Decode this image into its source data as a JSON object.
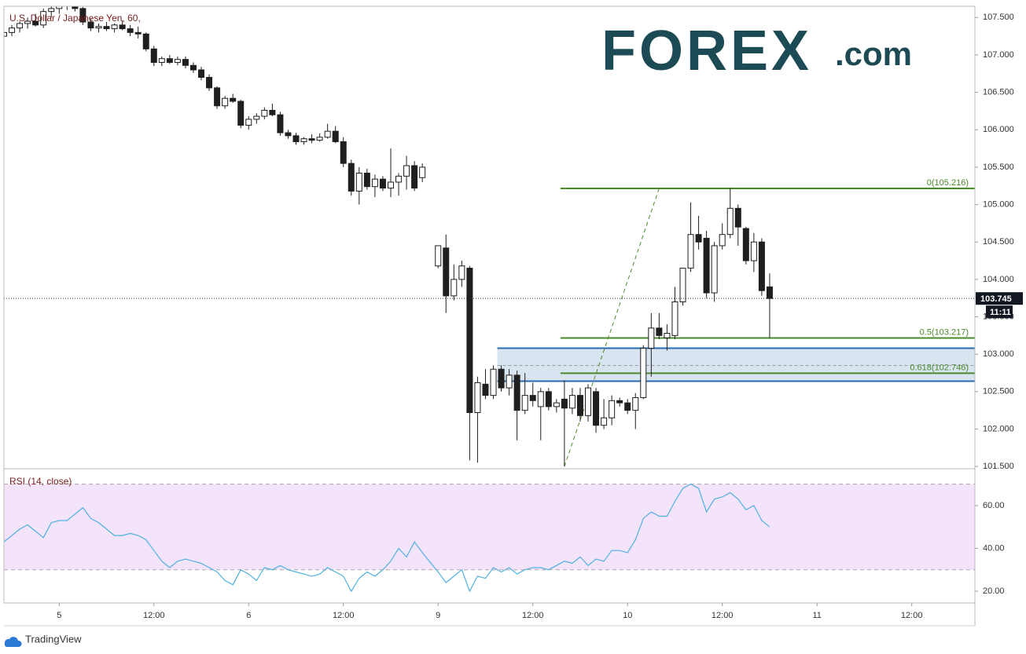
{
  "chart_data": [
    {
      "type": "candlestick",
      "title": "U.S. Dollar / Japanese Yen, 60,",
      "x": [
        -7,
        -6,
        -5,
        -4,
        -3,
        -2,
        -1,
        0,
        1,
        2,
        3,
        4,
        5,
        6,
        7,
        8,
        9,
        10,
        11,
        12,
        13,
        14,
        15,
        16,
        17,
        18,
        19,
        20,
        21,
        22,
        23,
        24,
        25,
        26,
        27,
        28,
        29,
        30,
        31,
        32,
        33,
        34,
        35,
        36,
        37,
        38,
        39,
        40,
        41,
        42,
        43,
        44,
        45,
        46,
        48,
        49,
        50,
        51,
        52,
        53,
        54,
        55,
        56,
        57,
        58,
        59,
        60,
        61,
        62,
        63,
        64,
        65,
        66,
        67,
        68,
        69,
        70,
        71,
        72,
        73,
        74,
        75,
        76,
        77,
        78,
        79,
        80,
        81,
        82,
        83,
        84,
        85,
        86,
        87,
        88,
        89,
        90
      ],
      "open": [
        107.25,
        107.3,
        107.36,
        107.42,
        107.45,
        107.4,
        107.58,
        107.62,
        107.66,
        107.72,
        107.62,
        107.44,
        107.36,
        107.38,
        107.35,
        107.4,
        107.35,
        107.3,
        107.28,
        107.08,
        106.9,
        106.95,
        106.9,
        106.94,
        106.86,
        106.8,
        106.7,
        106.56,
        106.32,
        106.42,
        106.38,
        106.06,
        106.14,
        106.18,
        106.26,
        106.2,
        105.96,
        105.92,
        105.84,
        105.88,
        105.86,
        105.9,
        105.98,
        105.84,
        105.55,
        105.18,
        105.42,
        105.24,
        105.34,
        105.22,
        105.3,
        105.38,
        105.52,
        105.36,
        104.18,
        104.42,
        103.78,
        104.0,
        104.15,
        102.22,
        102.6,
        102.45,
        102.8,
        102.55,
        102.72,
        102.25,
        102.45,
        102.3,
        102.5,
        102.3,
        102.4,
        102.28,
        102.45,
        102.18,
        102.5,
        102.05,
        102.15,
        102.38,
        102.35,
        102.25,
        102.42,
        103.08,
        103.35,
        103.22,
        103.25,
        103.7,
        104.15,
        104.6,
        104.55,
        103.82,
        104.45,
        104.6,
        104.95,
        104.68,
        104.25,
        104.5,
        103.9
      ],
      "high": [
        107.32,
        107.4,
        107.45,
        107.5,
        107.55,
        107.62,
        107.66,
        107.7,
        107.8,
        107.78,
        107.64,
        107.48,
        107.42,
        107.44,
        107.42,
        107.46,
        107.4,
        107.38,
        107.3,
        107.12,
        106.98,
        107.0,
        106.98,
        106.98,
        106.9,
        106.84,
        106.74,
        106.58,
        106.45,
        106.48,
        106.4,
        106.18,
        106.22,
        106.3,
        106.35,
        106.24,
        106.0,
        105.96,
        105.9,
        105.94,
        105.95,
        106.08,
        106.05,
        105.9,
        105.6,
        105.5,
        105.48,
        105.4,
        105.38,
        105.75,
        105.42,
        105.65,
        105.58,
        105.55,
        104.45,
        104.6,
        104.2,
        104.25,
        104.18,
        102.7,
        102.8,
        102.85,
        102.85,
        102.8,
        102.78,
        102.75,
        102.62,
        102.55,
        102.55,
        102.4,
        102.65,
        102.55,
        102.55,
        102.6,
        102.55,
        102.4,
        102.45,
        102.42,
        102.4,
        102.48,
        103.12,
        103.55,
        103.55,
        103.4,
        103.9,
        104.15,
        105.03,
        104.85,
        104.65,
        104.5,
        104.75,
        105.22,
        105.0,
        104.7,
        104.62,
        104.55,
        104.08
      ],
      "low": [
        107.18,
        107.25,
        107.3,
        107.35,
        107.38,
        107.36,
        107.5,
        107.55,
        107.6,
        107.58,
        107.4,
        107.32,
        107.3,
        107.32,
        107.3,
        107.33,
        107.25,
        107.22,
        107.05,
        106.85,
        106.85,
        106.88,
        106.86,
        106.82,
        106.76,
        106.66,
        106.52,
        106.28,
        106.28,
        106.36,
        106.02,
        106.0,
        106.08,
        106.14,
        106.18,
        105.92,
        105.88,
        105.8,
        105.8,
        105.82,
        105.84,
        105.88,
        105.82,
        105.5,
        105.12,
        105.0,
        105.2,
        105.1,
        105.18,
        105.1,
        105.12,
        105.2,
        105.18,
        105.3,
        104.15,
        103.55,
        103.72,
        103.9,
        101.58,
        101.55,
        102.4,
        102.4,
        102.5,
        102.45,
        101.85,
        102.2,
        102.3,
        101.85,
        102.25,
        102.22,
        101.5,
        102.2,
        102.1,
        102.1,
        101.95,
        102.0,
        102.05,
        102.3,
        102.2,
        102.0,
        102.4,
        102.7,
        103.2,
        103.05,
        103.2,
        103.65,
        104.1,
        104.4,
        103.75,
        103.7,
        104.4,
        104.55,
        104.45,
        104.2,
        104.1,
        103.78,
        103.22
      ],
      "close": [
        107.3,
        107.36,
        107.42,
        107.45,
        107.4,
        107.58,
        107.62,
        107.66,
        107.72,
        107.62,
        107.44,
        107.36,
        107.38,
        107.35,
        107.4,
        107.35,
        107.3,
        107.28,
        107.08,
        106.9,
        106.95,
        106.9,
        106.94,
        106.86,
        106.8,
        106.7,
        106.56,
        106.32,
        106.42,
        106.38,
        106.06,
        106.14,
        106.18,
        106.26,
        106.2,
        105.96,
        105.92,
        105.84,
        105.88,
        105.86,
        105.9,
        105.98,
        105.84,
        105.55,
        105.18,
        105.42,
        105.24,
        105.34,
        105.22,
        105.3,
        105.38,
        105.52,
        105.22,
        105.5,
        104.45,
        103.78,
        104.0,
        104.18,
        102.22,
        102.62,
        102.45,
        102.8,
        102.55,
        102.72,
        102.25,
        102.45,
        102.38,
        102.5,
        102.3,
        102.35,
        102.28,
        102.45,
        102.18,
        102.55,
        102.05,
        102.15,
        102.38,
        102.35,
        102.25,
        102.42,
        103.08,
        103.35,
        103.25,
        103.28,
        103.7,
        104.15,
        104.6,
        104.5,
        103.82,
        104.45,
        104.6,
        104.95,
        104.7,
        104.25,
        104.5,
        103.85,
        103.745
      ],
      "up_color": "#ffffff",
      "down_color": "#1f1f1f",
      "xlim": [
        -7,
        116
      ],
      "xticks": [
        {
          "value": 0,
          "label": "5"
        },
        {
          "value": 12,
          "label": "12:00"
        },
        {
          "value": 24,
          "label": "6"
        },
        {
          "value": 36,
          "label": "12:00"
        },
        {
          "value": 48,
          "label": "9"
        },
        {
          "value": 60,
          "label": "12:00"
        },
        {
          "value": 72,
          "label": "10"
        },
        {
          "value": 84,
          "label": "12:00"
        },
        {
          "value": 96,
          "label": "11"
        },
        {
          "value": 108,
          "label": "12:00"
        }
      ],
      "ylim": [
        101.47,
        107.65
      ],
      "yticks": [
        {
          "value": 101.5,
          "label": "101.500"
        },
        {
          "value": 102,
          "label": "102.000"
        },
        {
          "value": 102.5,
          "label": "102.500"
        },
        {
          "value": 103,
          "label": "103.000"
        },
        {
          "value": 103.5,
          "label": "103.500"
        },
        {
          "value": 104,
          "label": "104.000"
        },
        {
          "value": 104.5,
          "label": "104.500"
        },
        {
          "value": 105,
          "label": "105.000"
        },
        {
          "value": 105.5,
          "label": "105.500"
        },
        {
          "value": 106,
          "label": "106.000"
        },
        {
          "value": 106.5,
          "label": "106.500"
        },
        {
          "value": 107,
          "label": "107.000"
        },
        {
          "value": 107.5,
          "label": "107.500"
        }
      ],
      "last_price": 103.745,
      "countdown": "11:11",
      "fib_levels": [
        {
          "value": 105.216,
          "label": "0(105.216)"
        },
        {
          "value": 103.217,
          "label": "0.5(103.217)"
        },
        {
          "value": 102.746,
          "label": "0.618(102.746)"
        }
      ],
      "fib_color": "#4a8a2a",
      "fib_x0": 63.5,
      "fib_trend": {
        "x": [
          64,
          76
        ],
        "y": [
          101.5,
          105.216
        ]
      },
      "zone": {
        "x0": 55.5,
        "y0": 102.64,
        "y1": 103.08,
        "mid": 102.85,
        "color": "#2a6bb0"
      }
    },
    {
      "type": "line",
      "title": "RSI (14, close)",
      "values": [
        43,
        46,
        49,
        51,
        48,
        45,
        52,
        53,
        53,
        56,
        59,
        54,
        52,
        49,
        46,
        46,
        47,
        46,
        44,
        39,
        34,
        31,
        34,
        35,
        34,
        33,
        31,
        29,
        25,
        23,
        30,
        28,
        25,
        31,
        30,
        32,
        30,
        29,
        28,
        27,
        28,
        31,
        29,
        27,
        20,
        26,
        29,
        27,
        30,
        34,
        40,
        36,
        43,
        38,
        29,
        24,
        27,
        30,
        20,
        27,
        26,
        31,
        29,
        31,
        28,
        30,
        31,
        31,
        30,
        32,
        34,
        33,
        36,
        32,
        35,
        34,
        39,
        39,
        38,
        44,
        54,
        57,
        55,
        55,
        62,
        68,
        70,
        68,
        57,
        63,
        64,
        66,
        63,
        58,
        60,
        53,
        50
      ],
      "color": "#4fb0e0",
      "ylim": [
        14.5,
        77.2
      ],
      "yticks": [
        {
          "value": 20,
          "label": "20.00"
        },
        {
          "value": 40,
          "label": "40.00"
        },
        {
          "value": 60,
          "label": "60.00"
        }
      ],
      "band": [
        30,
        70
      ],
      "band_color": "#f3e4fb"
    }
  ],
  "brand": {
    "name": "FOREX",
    "suffix": ".com"
  },
  "footer": "TradingView"
}
